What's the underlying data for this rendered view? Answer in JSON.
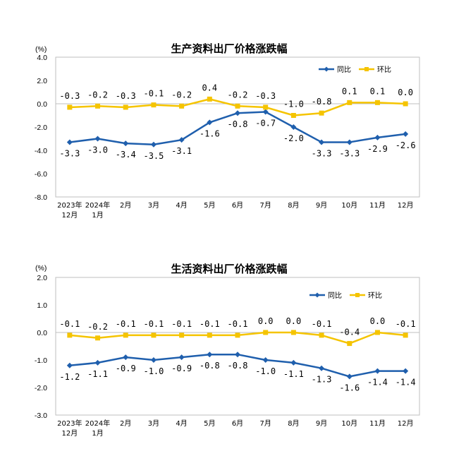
{
  "chart_data": [
    {
      "type": "line",
      "title": "生产资料出厂价格涨跌幅",
      "unit": "(%)",
      "categories": [
        "2023年12月",
        "2024年1月",
        "2月",
        "3月",
        "4月",
        "5月",
        "6月",
        "7月",
        "8月",
        "9月",
        "10月",
        "11月",
        "12月"
      ],
      "yticks": [
        "4.0",
        "2.0",
        "0.0",
        "-2.0",
        "-4.0",
        "-6.0",
        "-8.0"
      ],
      "ylim": [
        -8,
        4
      ],
      "legend_position": "top-right",
      "series": [
        {
          "name": "同比",
          "color": "#1f5fad",
          "marker": "diamond",
          "values": [
            -3.3,
            -3.0,
            -3.4,
            -3.5,
            -3.1,
            -1.6,
            -0.8,
            -0.7,
            -2.0,
            -3.3,
            -3.3,
            -2.9,
            -2.6
          ],
          "labels": [
            "-3.3",
            "-3.0",
            "-3.4",
            "-3.5",
            "-3.1",
            "-1.6",
            "-0.8",
            "-0.7",
            "-2.0",
            "-3.3",
            "-3.3",
            "-2.9",
            "-2.6"
          ]
        },
        {
          "name": "环比",
          "color": "#f5c400",
          "marker": "square",
          "values": [
            -0.3,
            -0.2,
            -0.3,
            -0.1,
            -0.2,
            0.4,
            -0.2,
            -0.3,
            -1.0,
            -0.8,
            0.1,
            0.1,
            0.0
          ],
          "labels": [
            "-0.3",
            "-0.2",
            "-0.3",
            "-0.1",
            "-0.2",
            "0.4",
            "-0.2",
            "-0.3",
            "-1.0",
            "-0.8",
            "0.1",
            "0.1",
            "0.0"
          ]
        }
      ]
    },
    {
      "type": "line",
      "title": "生活资料出厂价格涨跌幅",
      "unit": "(%)",
      "categories": [
        "2023年12月",
        "2024年1月",
        "2月",
        "3月",
        "4月",
        "5月",
        "6月",
        "7月",
        "8月",
        "9月",
        "10月",
        "11月",
        "12月"
      ],
      "yticks": [
        "2.0",
        "1.0",
        "0.0",
        "-1.0",
        "-2.0",
        "-3.0"
      ],
      "ylim": [
        -3,
        2
      ],
      "legend_position": "top-right",
      "series": [
        {
          "name": "同比",
          "color": "#1f5fad",
          "marker": "diamond",
          "values": [
            -1.2,
            -1.1,
            -0.9,
            -1.0,
            -0.9,
            -0.8,
            -0.8,
            -1.0,
            -1.1,
            -1.3,
            -1.6,
            -1.4,
            -1.4
          ],
          "labels": [
            "-1.2",
            "-1.1",
            "-0.9",
            "-1.0",
            "-0.9",
            "-0.8",
            "-0.8",
            "-1.0",
            "-1.1",
            "-1.3",
            "-1.6",
            "-1.4",
            "-1.4"
          ]
        },
        {
          "name": "环比",
          "color": "#f5c400",
          "marker": "square",
          "values": [
            -0.1,
            -0.2,
            -0.1,
            -0.1,
            -0.1,
            -0.1,
            -0.1,
            0.0,
            0.0,
            -0.1,
            -0.4,
            0.0,
            -0.1
          ],
          "labels": [
            "-0.1",
            "-0.2",
            "-0.1",
            "-0.1",
            "-0.1",
            "-0.1",
            "-0.1",
            "0.0",
            "0.0",
            "-0.1",
            "-0.4",
            "0.0",
            "-0.1"
          ]
        }
      ]
    }
  ]
}
